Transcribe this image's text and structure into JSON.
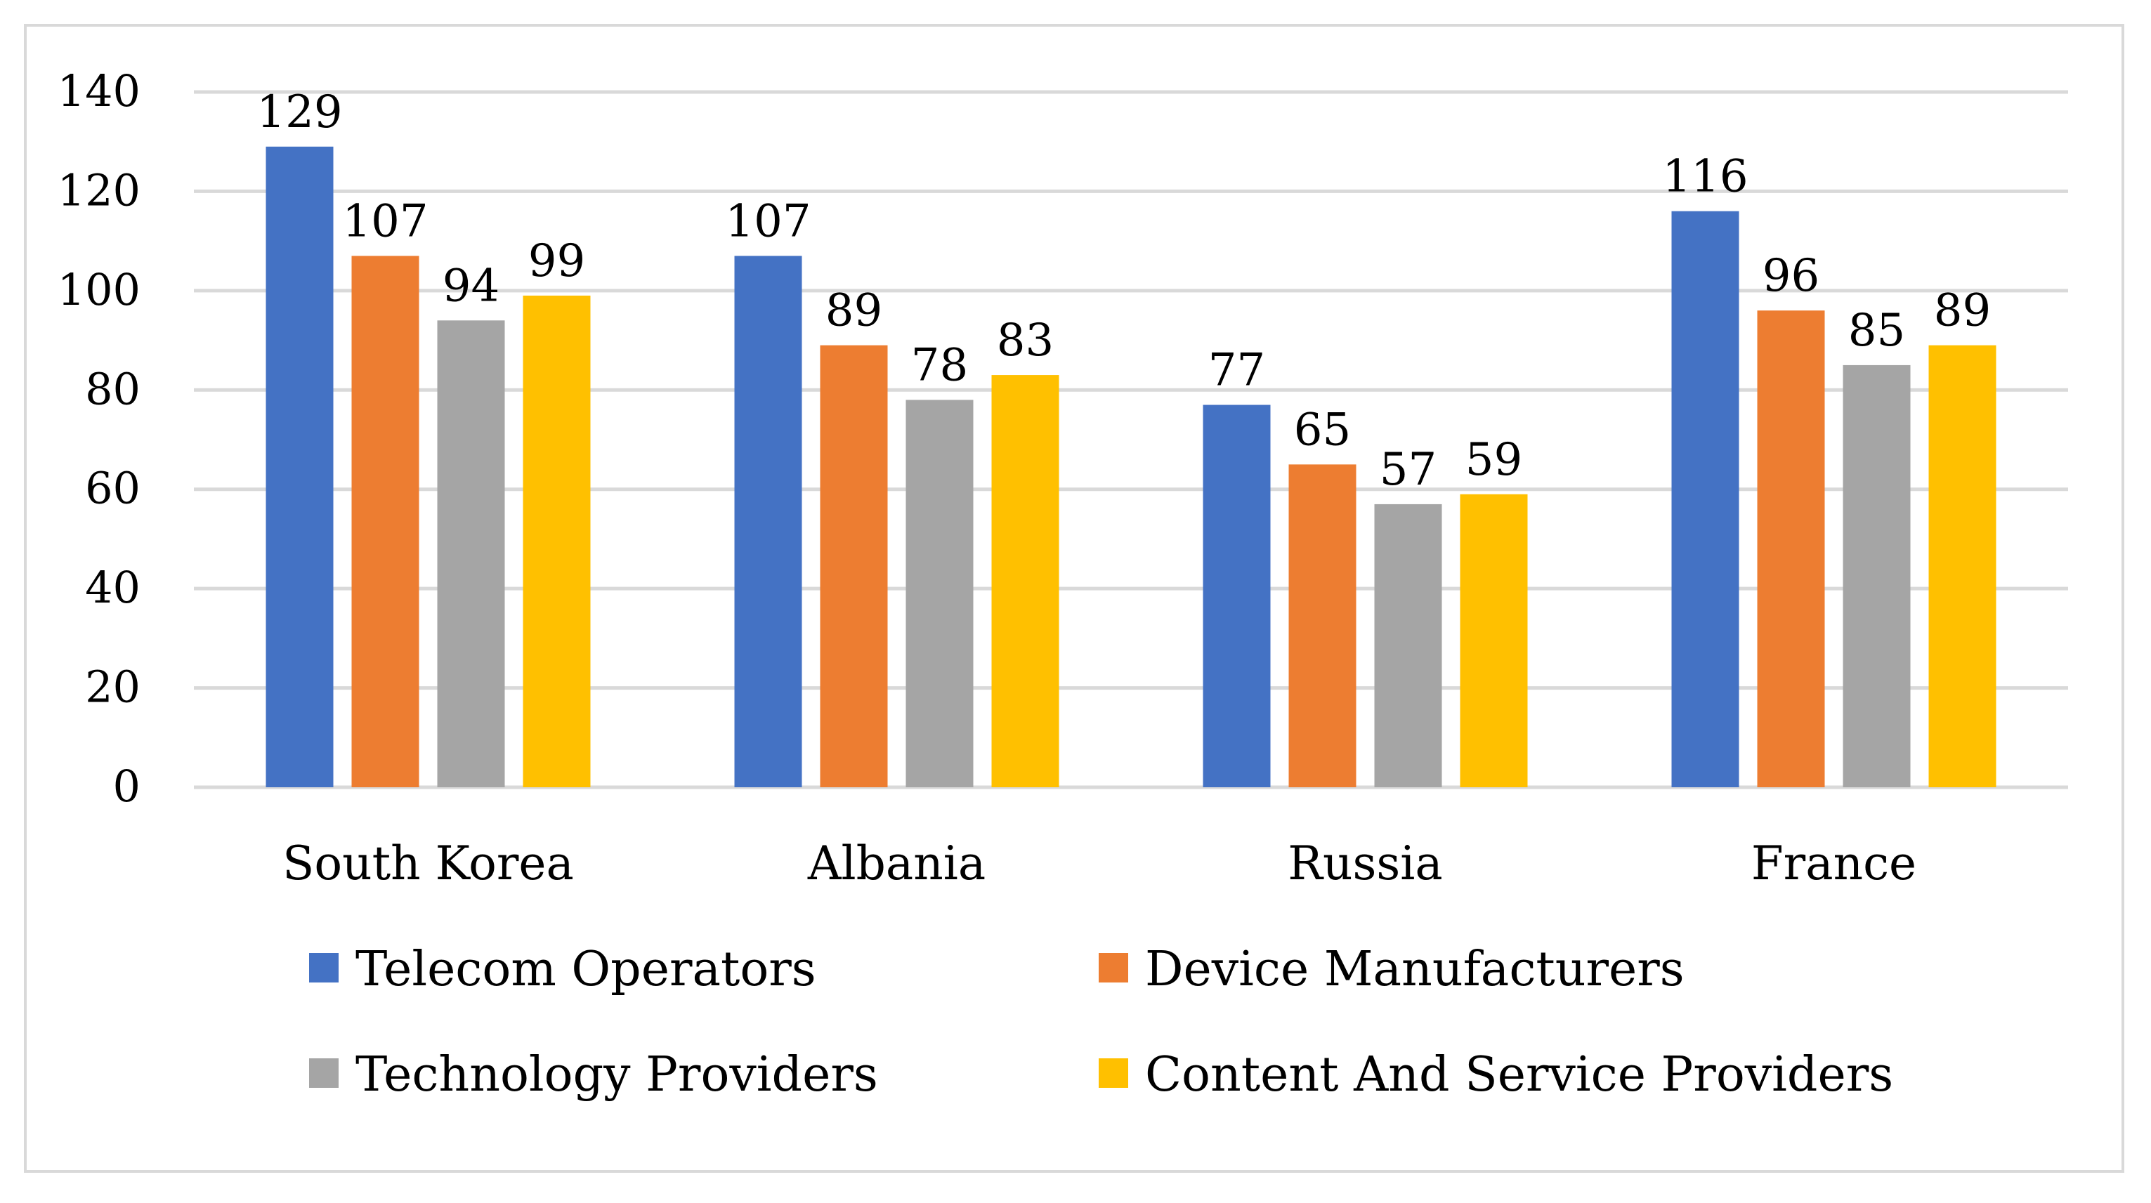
{
  "chart_data": {
    "type": "bar",
    "title": "",
    "xlabel": "",
    "ylabel": "",
    "categories": [
      "South Korea",
      "Albania",
      "Russia",
      "France"
    ],
    "series": [
      {
        "name": "Telecom Operators",
        "color": "#4472c4",
        "values": [
          129,
          107,
          77,
          116
        ]
      },
      {
        "name": "Device Manufacturers",
        "color": "#ed7d31",
        "values": [
          107,
          89,
          65,
          96
        ]
      },
      {
        "name": "Technology Providers",
        "color": "#a5a5a5",
        "values": [
          94,
          78,
          57,
          85
        ]
      },
      {
        "name": "Content And Service Providers",
        "color": "#ffc000",
        "values": [
          99,
          83,
          59,
          89
        ]
      }
    ],
    "ylim": [
      0,
      140
    ],
    "yticks": [
      "0",
      "20",
      "40",
      "60",
      "80",
      "100",
      "120",
      "140"
    ],
    "grid": true,
    "legend": "bottom",
    "data_labels": true
  }
}
